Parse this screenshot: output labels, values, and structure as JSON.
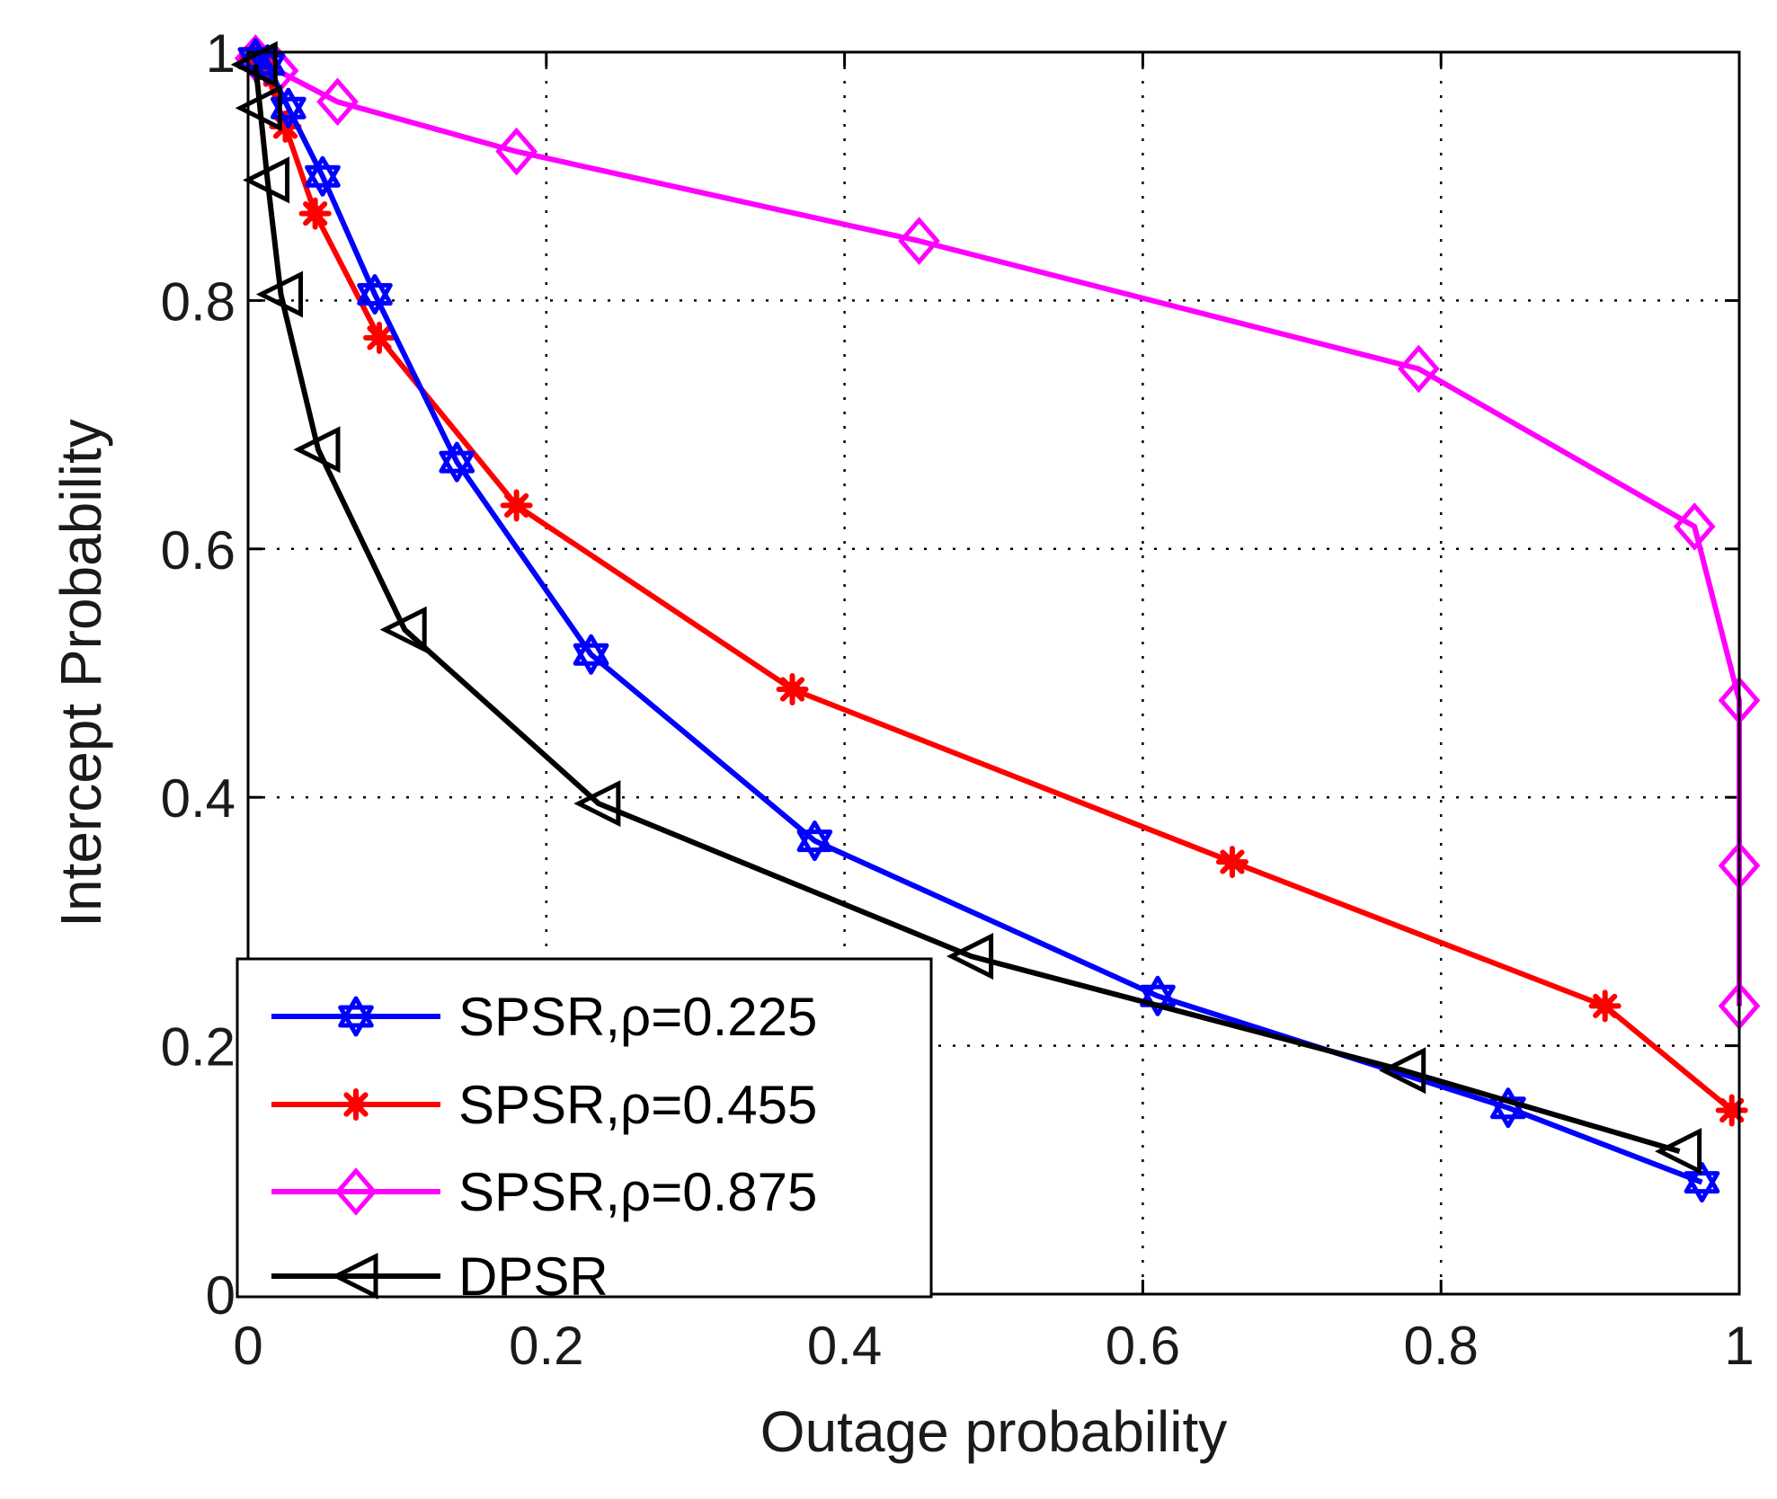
{
  "chart_data": {
    "type": "line",
    "title": "",
    "xlabel": "Outage probability",
    "ylabel": "Intercept Probability",
    "xlim": [
      0,
      1
    ],
    "ylim": [
      0,
      1
    ],
    "xticks": [
      0,
      0.2,
      0.4,
      0.6,
      0.8,
      1
    ],
    "yticks": [
      0,
      0.2,
      0.4,
      0.6,
      0.8,
      1
    ],
    "xtick_labels": [
      "0",
      "0.2",
      "0.4",
      "0.6",
      "0.8",
      "1"
    ],
    "ytick_labels": [
      "0",
      "0.2",
      "0.4",
      "0.6",
      "0.8",
      "1"
    ],
    "grid": true,
    "legend_position": "bottom-left",
    "series": [
      {
        "name": "SPSR,ρ=0.225",
        "color": "#0000ff",
        "marker": "hexagram",
        "x": [
          0.005,
          0.013,
          0.027,
          0.05,
          0.085,
          0.14,
          0.23,
          0.38,
          0.61,
          0.845,
          0.975
        ],
        "y": [
          0.995,
          0.99,
          0.955,
          0.9,
          0.805,
          0.67,
          0.515,
          0.365,
          0.24,
          0.15,
          0.09
        ]
      },
      {
        "name": "SPSR,ρ=0.455",
        "color": "#ff0000",
        "marker": "asterisk",
        "x": [
          0.005,
          0.012,
          0.025,
          0.045,
          0.088,
          0.18,
          0.365,
          0.66,
          0.91,
          0.995
        ],
        "y": [
          0.995,
          0.985,
          0.94,
          0.87,
          0.77,
          0.635,
          0.487,
          0.348,
          0.232,
          0.148
        ]
      },
      {
        "name": "SPSR,ρ=0.875",
        "color": "#ff00ff",
        "marker": "diamond",
        "x": [
          0.005,
          0.02,
          0.06,
          0.18,
          0.45,
          0.785,
          0.97,
          1.0,
          1.0,
          1.0
        ],
        "y": [
          0.995,
          0.985,
          0.96,
          0.92,
          0.848,
          0.745,
          0.618,
          0.478,
          0.345,
          0.232
        ]
      },
      {
        "name": "DPSR",
        "color": "#000000",
        "marker": "triangle-left",
        "x": [
          0.005,
          0.008,
          0.013,
          0.022,
          0.047,
          0.105,
          0.235,
          0.485,
          0.775,
          0.96
        ],
        "y": [
          0.99,
          0.955,
          0.897,
          0.805,
          0.68,
          0.535,
          0.395,
          0.272,
          0.18,
          0.115
        ]
      }
    ]
  }
}
